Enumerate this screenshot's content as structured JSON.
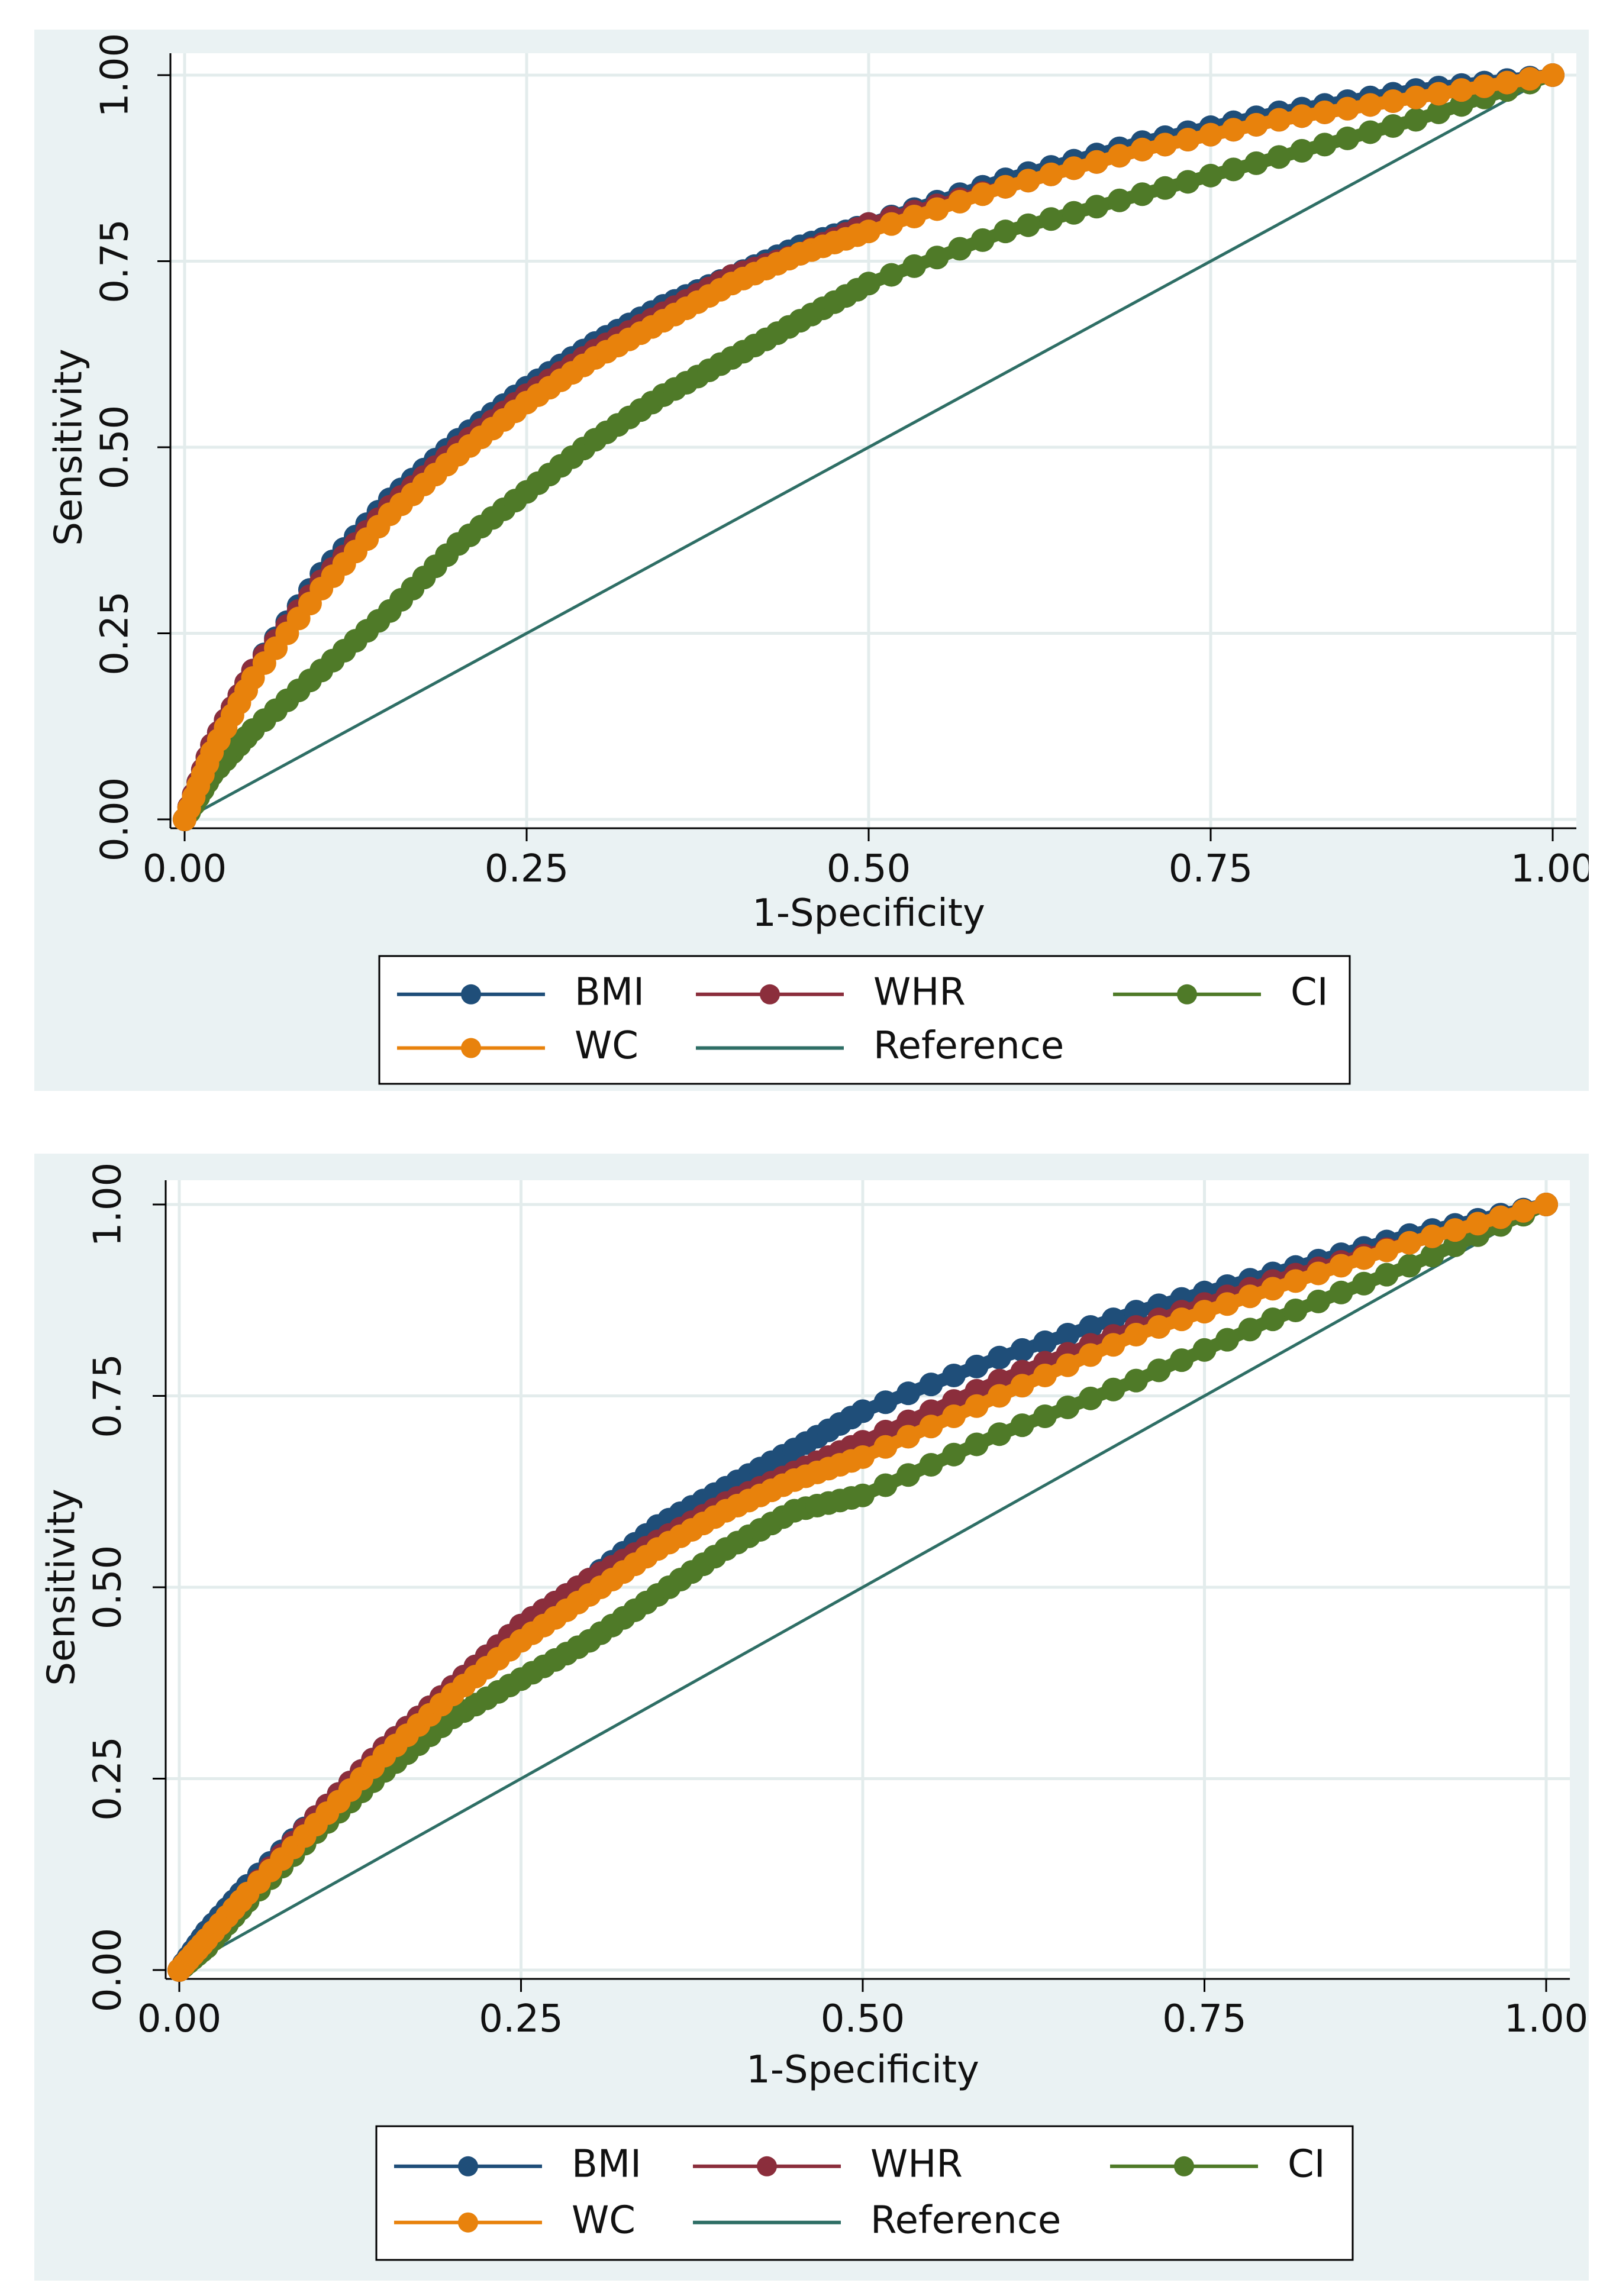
{
  "chart_data": [
    {
      "type": "line",
      "title": "",
      "xlabel": "1-Specificity",
      "ylabel": "Sensitivity",
      "xlim": [
        0,
        1
      ],
      "ylim": [
        0,
        1
      ],
      "x_ticks": [
        "0.00",
        "0.25",
        "0.50",
        "0.75",
        "1.00"
      ],
      "y_ticks": [
        "0.00",
        "0.25",
        "0.50",
        "0.75",
        "1.00"
      ],
      "grid": true,
      "legend_position": "bottom",
      "series": [
        {
          "name": "BMI",
          "color": "#1f4e79",
          "marker": "circle",
          "x": [
            0,
            0.02,
            0.05,
            0.1,
            0.15,
            0.2,
            0.25,
            0.3,
            0.35,
            0.4,
            0.45,
            0.5,
            0.6,
            0.7,
            0.8,
            0.9,
            1.0
          ],
          "y": [
            0,
            0.1,
            0.2,
            0.33,
            0.43,
            0.51,
            0.58,
            0.64,
            0.69,
            0.73,
            0.77,
            0.8,
            0.86,
            0.91,
            0.95,
            0.98,
            1.0
          ]
        },
        {
          "name": "WHR",
          "color": "#8b2e3c",
          "marker": "circle",
          "x": [
            0,
            0.02,
            0.05,
            0.1,
            0.15,
            0.2,
            0.25,
            0.3,
            0.35,
            0.4,
            0.45,
            0.5,
            0.6,
            0.7,
            0.8,
            0.9,
            1.0
          ],
          "y": [
            0,
            0.1,
            0.2,
            0.32,
            0.42,
            0.5,
            0.57,
            0.63,
            0.68,
            0.73,
            0.76,
            0.8,
            0.85,
            0.9,
            0.94,
            0.97,
            1.0
          ]
        },
        {
          "name": "CI",
          "color": "#4f7a28",
          "marker": "circle",
          "x": [
            0,
            0.02,
            0.05,
            0.1,
            0.15,
            0.2,
            0.25,
            0.3,
            0.35,
            0.4,
            0.45,
            0.5,
            0.6,
            0.7,
            0.8,
            0.9,
            1.0
          ],
          "y": [
            0,
            0.06,
            0.12,
            0.2,
            0.28,
            0.37,
            0.44,
            0.51,
            0.57,
            0.62,
            0.67,
            0.72,
            0.79,
            0.84,
            0.89,
            0.94,
            1.0
          ]
        },
        {
          "name": "WC",
          "color": "#e8820c",
          "marker": "circle",
          "x": [
            0,
            0.02,
            0.05,
            0.1,
            0.15,
            0.2,
            0.25,
            0.3,
            0.35,
            0.4,
            0.45,
            0.5,
            0.6,
            0.7,
            0.8,
            0.9,
            1.0
          ],
          "y": [
            0,
            0.09,
            0.19,
            0.31,
            0.41,
            0.49,
            0.56,
            0.62,
            0.67,
            0.72,
            0.76,
            0.79,
            0.85,
            0.9,
            0.94,
            0.97,
            1.0
          ]
        },
        {
          "name": "Reference",
          "color": "#2e6e65",
          "marker": "none",
          "x": [
            0,
            1
          ],
          "y": [
            0,
            1
          ]
        }
      ]
    },
    {
      "type": "line",
      "title": "",
      "xlabel": "1-Specificity",
      "ylabel": "Sensitivity",
      "xlim": [
        0,
        1
      ],
      "ylim": [
        0,
        1
      ],
      "x_ticks": [
        "0.00",
        "0.25",
        "0.50",
        "0.75",
        "1.00"
      ],
      "y_ticks": [
        "0.00",
        "0.25",
        "0.50",
        "0.75",
        "1.00"
      ],
      "grid": true,
      "legend_position": "bottom",
      "series": [
        {
          "name": "BMI",
          "color": "#1f4e79",
          "marker": "circle",
          "x": [
            0,
            0.02,
            0.05,
            0.1,
            0.15,
            0.2,
            0.25,
            0.3,
            0.35,
            0.4,
            0.45,
            0.5,
            0.6,
            0.7,
            0.8,
            0.9,
            1.0
          ],
          "y": [
            0,
            0.05,
            0.11,
            0.2,
            0.29,
            0.37,
            0.45,
            0.51,
            0.58,
            0.63,
            0.68,
            0.73,
            0.8,
            0.86,
            0.91,
            0.96,
            1.0
          ]
        },
        {
          "name": "WHR",
          "color": "#8b2e3c",
          "marker": "circle",
          "x": [
            0,
            0.02,
            0.05,
            0.1,
            0.15,
            0.2,
            0.25,
            0.3,
            0.35,
            0.4,
            0.45,
            0.5,
            0.6,
            0.7,
            0.8,
            0.9,
            1.0
          ],
          "y": [
            0,
            0.04,
            0.1,
            0.2,
            0.29,
            0.37,
            0.45,
            0.51,
            0.56,
            0.61,
            0.65,
            0.69,
            0.77,
            0.84,
            0.9,
            0.95,
            1.0
          ]
        },
        {
          "name": "CI",
          "color": "#4f7a28",
          "marker": "circle",
          "x": [
            0,
            0.02,
            0.05,
            0.1,
            0.15,
            0.2,
            0.25,
            0.3,
            0.35,
            0.4,
            0.45,
            0.5,
            0.6,
            0.7,
            0.8,
            0.9,
            1.0
          ],
          "y": [
            0,
            0.03,
            0.09,
            0.18,
            0.26,
            0.33,
            0.38,
            0.43,
            0.49,
            0.55,
            0.6,
            0.62,
            0.7,
            0.77,
            0.85,
            0.92,
            1.0
          ]
        },
        {
          "name": "WC",
          "color": "#e8820c",
          "marker": "circle",
          "x": [
            0,
            0.02,
            0.05,
            0.1,
            0.15,
            0.2,
            0.25,
            0.3,
            0.35,
            0.4,
            0.45,
            0.5,
            0.6,
            0.7,
            0.8,
            0.9,
            1.0
          ],
          "y": [
            0,
            0.04,
            0.1,
            0.19,
            0.28,
            0.36,
            0.43,
            0.49,
            0.55,
            0.6,
            0.64,
            0.67,
            0.75,
            0.83,
            0.89,
            0.95,
            1.0
          ]
        },
        {
          "name": "Reference",
          "color": "#2e6e65",
          "marker": "none",
          "x": [
            0,
            1
          ],
          "y": [
            0,
            1
          ]
        }
      ]
    }
  ]
}
